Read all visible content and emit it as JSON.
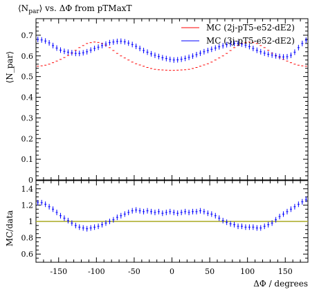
{
  "chart_data": [
    {
      "type": "scatter",
      "title": "⟨N_par⟩ vs. ΔΦ from pTMaxT",
      "ylabel": "⟨N_par⟩",
      "xlabel": "ΔΦ / degrees",
      "xlim": [
        -180,
        180
      ],
      "ylim": [
        0,
        0.78
      ],
      "yticks": [
        "0",
        "0.1",
        "0.2",
        "0.3",
        "0.4",
        "0.5",
        "0.6",
        "0.7"
      ],
      "grid": false,
      "legend": "top-right",
      "series": [
        {
          "name": "MC (2j-pT5-e52-dE2)",
          "color": "#ff0000",
          "x": [
            -177.5,
            -172.5,
            -167.5,
            -162.5,
            -157.5,
            -152.5,
            -147.5,
            -142.5,
            -137.5,
            -132.5,
            -127.5,
            -122.5,
            -117.5,
            -112.5,
            -107.5,
            -102.5,
            -97.5,
            -92.5,
            -87.5,
            -82.5,
            -77.5,
            -72.5,
            -67.5,
            -62.5,
            -57.5,
            -52.5,
            -47.5,
            -42.5,
            -37.5,
            -32.5,
            -27.5,
            -22.5,
            -17.5,
            -12.5,
            -7.5,
            -2.5,
            2.5,
            7.5,
            12.5,
            17.5,
            22.5,
            27.5,
            32.5,
            37.5,
            42.5,
            47.5,
            52.5,
            57.5,
            62.5,
            67.5,
            72.5,
            77.5,
            82.5,
            87.5,
            92.5,
            97.5,
            102.5,
            107.5,
            112.5,
            117.5,
            122.5,
            127.5,
            132.5,
            137.5,
            142.5,
            147.5,
            152.5,
            157.5,
            162.5,
            167.5,
            172.5,
            177.5
          ],
          "y": [
            0.55,
            0.552,
            0.555,
            0.56,
            0.567,
            0.575,
            0.583,
            0.592,
            0.602,
            0.613,
            0.627,
            0.64,
            0.65,
            0.66,
            0.664,
            0.667,
            0.665,
            0.66,
            0.651,
            0.64,
            0.626,
            0.612,
            0.6,
            0.59,
            0.58,
            0.57,
            0.562,
            0.556,
            0.55,
            0.544,
            0.539,
            0.535,
            0.533,
            0.532,
            0.531,
            0.53,
            0.53,
            0.531,
            0.532,
            0.533,
            0.535,
            0.539,
            0.544,
            0.55,
            0.556,
            0.562,
            0.57,
            0.58,
            0.59,
            0.6,
            0.612,
            0.626,
            0.64,
            0.651,
            0.66,
            0.665,
            0.667,
            0.664,
            0.66,
            0.65,
            0.64,
            0.627,
            0.613,
            0.602,
            0.592,
            0.583,
            0.575,
            0.567,
            0.56,
            0.555,
            0.552,
            0.55
          ]
        },
        {
          "name": "MC (3j-pT5-e52-dE2)",
          "color": "#0000ff",
          "x": [
            -177.5,
            -172.5,
            -167.5,
            -162.5,
            -157.5,
            -152.5,
            -147.5,
            -142.5,
            -137.5,
            -132.5,
            -127.5,
            -122.5,
            -117.5,
            -112.5,
            -107.5,
            -102.5,
            -97.5,
            -92.5,
            -87.5,
            -82.5,
            -77.5,
            -72.5,
            -67.5,
            -62.5,
            -57.5,
            -52.5,
            -47.5,
            -42.5,
            -37.5,
            -32.5,
            -27.5,
            -22.5,
            -17.5,
            -12.5,
            -7.5,
            -2.5,
            2.5,
            7.5,
            12.5,
            17.5,
            22.5,
            27.5,
            32.5,
            37.5,
            42.5,
            47.5,
            52.5,
            57.5,
            62.5,
            67.5,
            72.5,
            77.5,
            82.5,
            87.5,
            92.5,
            97.5,
            102.5,
            107.5,
            112.5,
            117.5,
            122.5,
            127.5,
            132.5,
            137.5,
            142.5,
            147.5,
            152.5,
            157.5,
            162.5,
            167.5,
            172.5,
            177.5
          ],
          "y": [
            0.68,
            0.677,
            0.672,
            0.663,
            0.65,
            0.638,
            0.628,
            0.622,
            0.618,
            0.615,
            0.612,
            0.612,
            0.615,
            0.62,
            0.628,
            0.636,
            0.642,
            0.65,
            0.657,
            0.664,
            0.667,
            0.67,
            0.671,
            0.668,
            0.662,
            0.655,
            0.646,
            0.636,
            0.626,
            0.618,
            0.61,
            0.603,
            0.597,
            0.591,
            0.587,
            0.583,
            0.58,
            0.581,
            0.584,
            0.588,
            0.593,
            0.599,
            0.606,
            0.613,
            0.62,
            0.626,
            0.632,
            0.638,
            0.644,
            0.649,
            0.654,
            0.658,
            0.66,
            0.66,
            0.657,
            0.652,
            0.645,
            0.636,
            0.627,
            0.62,
            0.613,
            0.608,
            0.604,
            0.6,
            0.597,
            0.595,
            0.596,
            0.603,
            0.618,
            0.64,
            0.66,
            0.676
          ]
        }
      ]
    },
    {
      "type": "scatter",
      "ylabel": "MC/data",
      "xlabel": "ΔΦ / degrees",
      "xlim": [
        -180,
        180
      ],
      "ylim": [
        0.5,
        1.5
      ],
      "yticks": [
        "0.6",
        "0.8",
        "1",
        "1.2",
        "1.4"
      ],
      "xticks": [
        "-150",
        "-100",
        "-50",
        "0",
        "50",
        "100",
        "150"
      ],
      "reference_line": {
        "y": 1,
        "color": "#a8a820"
      },
      "series": [
        {
          "color": "#0000ff",
          "x": [
            -177.5,
            -172.5,
            -167.5,
            -162.5,
            -157.5,
            -152.5,
            -147.5,
            -142.5,
            -137.5,
            -132.5,
            -127.5,
            -122.5,
            -117.5,
            -112.5,
            -107.5,
            -102.5,
            -97.5,
            -92.5,
            -87.5,
            -82.5,
            -77.5,
            -72.5,
            -67.5,
            -62.5,
            -57.5,
            -52.5,
            -47.5,
            -42.5,
            -37.5,
            -32.5,
            -27.5,
            -22.5,
            -17.5,
            -12.5,
            -7.5,
            -2.5,
            2.5,
            7.5,
            12.5,
            17.5,
            22.5,
            27.5,
            32.5,
            37.5,
            42.5,
            47.5,
            52.5,
            57.5,
            62.5,
            67.5,
            72.5,
            77.5,
            82.5,
            87.5,
            92.5,
            97.5,
            102.5,
            107.5,
            112.5,
            117.5,
            122.5,
            127.5,
            132.5,
            137.5,
            142.5,
            147.5,
            152.5,
            157.5,
            162.5,
            167.5,
            172.5,
            177.5
          ],
          "y": [
            1.23,
            1.23,
            1.21,
            1.18,
            1.15,
            1.11,
            1.07,
            1.04,
            1.01,
            0.98,
            0.95,
            0.93,
            0.92,
            0.91,
            0.92,
            0.93,
            0.94,
            0.96,
            0.98,
            1.0,
            1.02,
            1.05,
            1.07,
            1.09,
            1.11,
            1.13,
            1.14,
            1.13,
            1.12,
            1.13,
            1.12,
            1.11,
            1.12,
            1.1,
            1.11,
            1.12,
            1.11,
            1.1,
            1.11,
            1.12,
            1.11,
            1.12,
            1.12,
            1.13,
            1.12,
            1.1,
            1.09,
            1.07,
            1.04,
            1.01,
            0.99,
            0.97,
            0.96,
            0.94,
            0.94,
            0.93,
            0.93,
            0.93,
            0.92,
            0.92,
            0.94,
            0.96,
            0.98,
            1.02,
            1.06,
            1.09,
            1.12,
            1.15,
            1.18,
            1.21,
            1.24,
            1.27
          ]
        }
      ]
    }
  ]
}
